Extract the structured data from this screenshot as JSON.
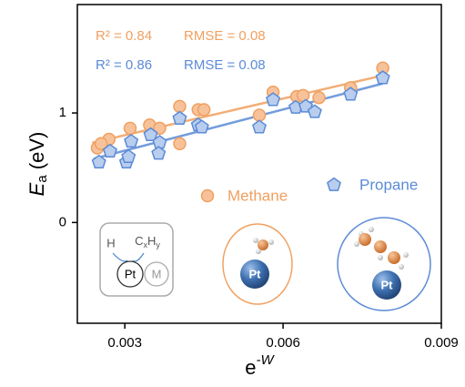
{
  "chart_data": {
    "type": "scatter",
    "y_label": {
      "main": "E",
      "sub": "a",
      "rest": " (eV)"
    },
    "x_label": {
      "main": "e",
      "sup": "-W"
    },
    "xlim": [
      0.0021,
      0.009
    ],
    "xticks": [
      0.003,
      0.006,
      0.009
    ],
    "ylim": [
      -0.92,
      1.99
    ],
    "yticks": [
      0,
      1
    ],
    "fit_lines": true,
    "series": [
      {
        "name": "Methane",
        "marker": "circle",
        "color": "#f0a060",
        "fill": "#f7c29a",
        "annotation": {
          "r2": "R² = 0.84",
          "rmse": "RMSE = 0.08"
        },
        "x": [
          0.00248,
          0.0027,
          0.00255,
          0.0031,
          0.00347,
          0.00366,
          0.00404,
          0.00404,
          0.00439,
          0.0045,
          0.00555,
          0.00581,
          0.00626,
          0.00638,
          0.00668,
          0.00728,
          0.00789
        ],
        "values": [
          0.68,
          0.76,
          0.72,
          0.86,
          0.89,
          0.86,
          1.06,
          0.72,
          1.03,
          1.03,
          0.98,
          1.19,
          1.15,
          1.16,
          1.14,
          1.23,
          1.41
        ]
      },
      {
        "name": "Propane",
        "marker": "pentagon",
        "color": "#5b8bd6",
        "fill": "#b9cdee",
        "annotation": {
          "r2": "R² = 0.86",
          "rmse": "RMSE = 0.08"
        },
        "x": [
          0.00251,
          0.00272,
          0.00303,
          0.00307,
          0.00312,
          0.00349,
          0.00366,
          0.00364,
          0.00404,
          0.00439,
          0.00446,
          0.00555,
          0.00581,
          0.00624,
          0.00643,
          0.0066,
          0.00728,
          0.00789
        ],
        "values": [
          0.55,
          0.65,
          0.55,
          0.6,
          0.74,
          0.8,
          0.73,
          0.63,
          0.95,
          0.89,
          0.87,
          0.87,
          1.12,
          1.05,
          1.06,
          1.01,
          1.17,
          1.32
        ]
      }
    ],
    "insets": {
      "h": "H",
      "c": "C",
      "x": "x",
      "hh": "H",
      "y": "y",
      "pt": "Pt",
      "m": "M",
      "methane_pt": "Pt",
      "propane_pt": "Pt"
    }
  }
}
